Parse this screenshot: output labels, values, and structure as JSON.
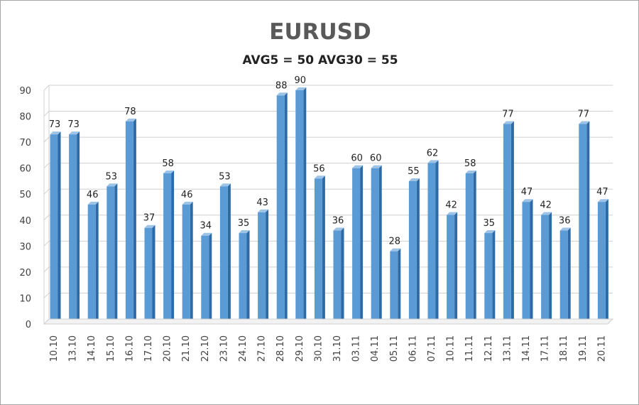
{
  "chart_data": {
    "type": "bar",
    "title": "EURUSD",
    "subtitle": "AVG5 = 50 AVG30 = 55",
    "xlabel": "",
    "ylabel": "",
    "ylim": [
      0,
      90
    ],
    "yticks": [
      0,
      10,
      20,
      30,
      40,
      50,
      60,
      70,
      80,
      90
    ],
    "grid": true,
    "legend": "none",
    "categories": [
      "10.10",
      "13.10",
      "14.10",
      "15.10",
      "16.10",
      "17.10",
      "20.10",
      "21.10",
      "22.10",
      "23.10",
      "24.10",
      "27.10",
      "28.10",
      "29.10",
      "30.10",
      "31.10",
      "03.11",
      "04.11",
      "05.11",
      "06.11",
      "07.11",
      "10.11",
      "11.11",
      "12.11",
      "13.11",
      "14.11",
      "17.11",
      "18.11",
      "19.11",
      "20.11"
    ],
    "values": [
      73,
      73,
      46,
      53,
      78,
      37,
      58,
      46,
      34,
      53,
      35,
      43,
      88,
      90,
      56,
      36,
      60,
      60,
      28,
      55,
      62,
      42,
      58,
      35,
      77,
      47,
      42,
      36,
      77,
      47
    ],
    "colors": {
      "bar": "#5b9bd5",
      "bar_dark": "#2e6aa6",
      "bar_light": "#9dc3e6",
      "grid": "#d0d0d0",
      "axis": "#7f7f7f"
    }
  }
}
